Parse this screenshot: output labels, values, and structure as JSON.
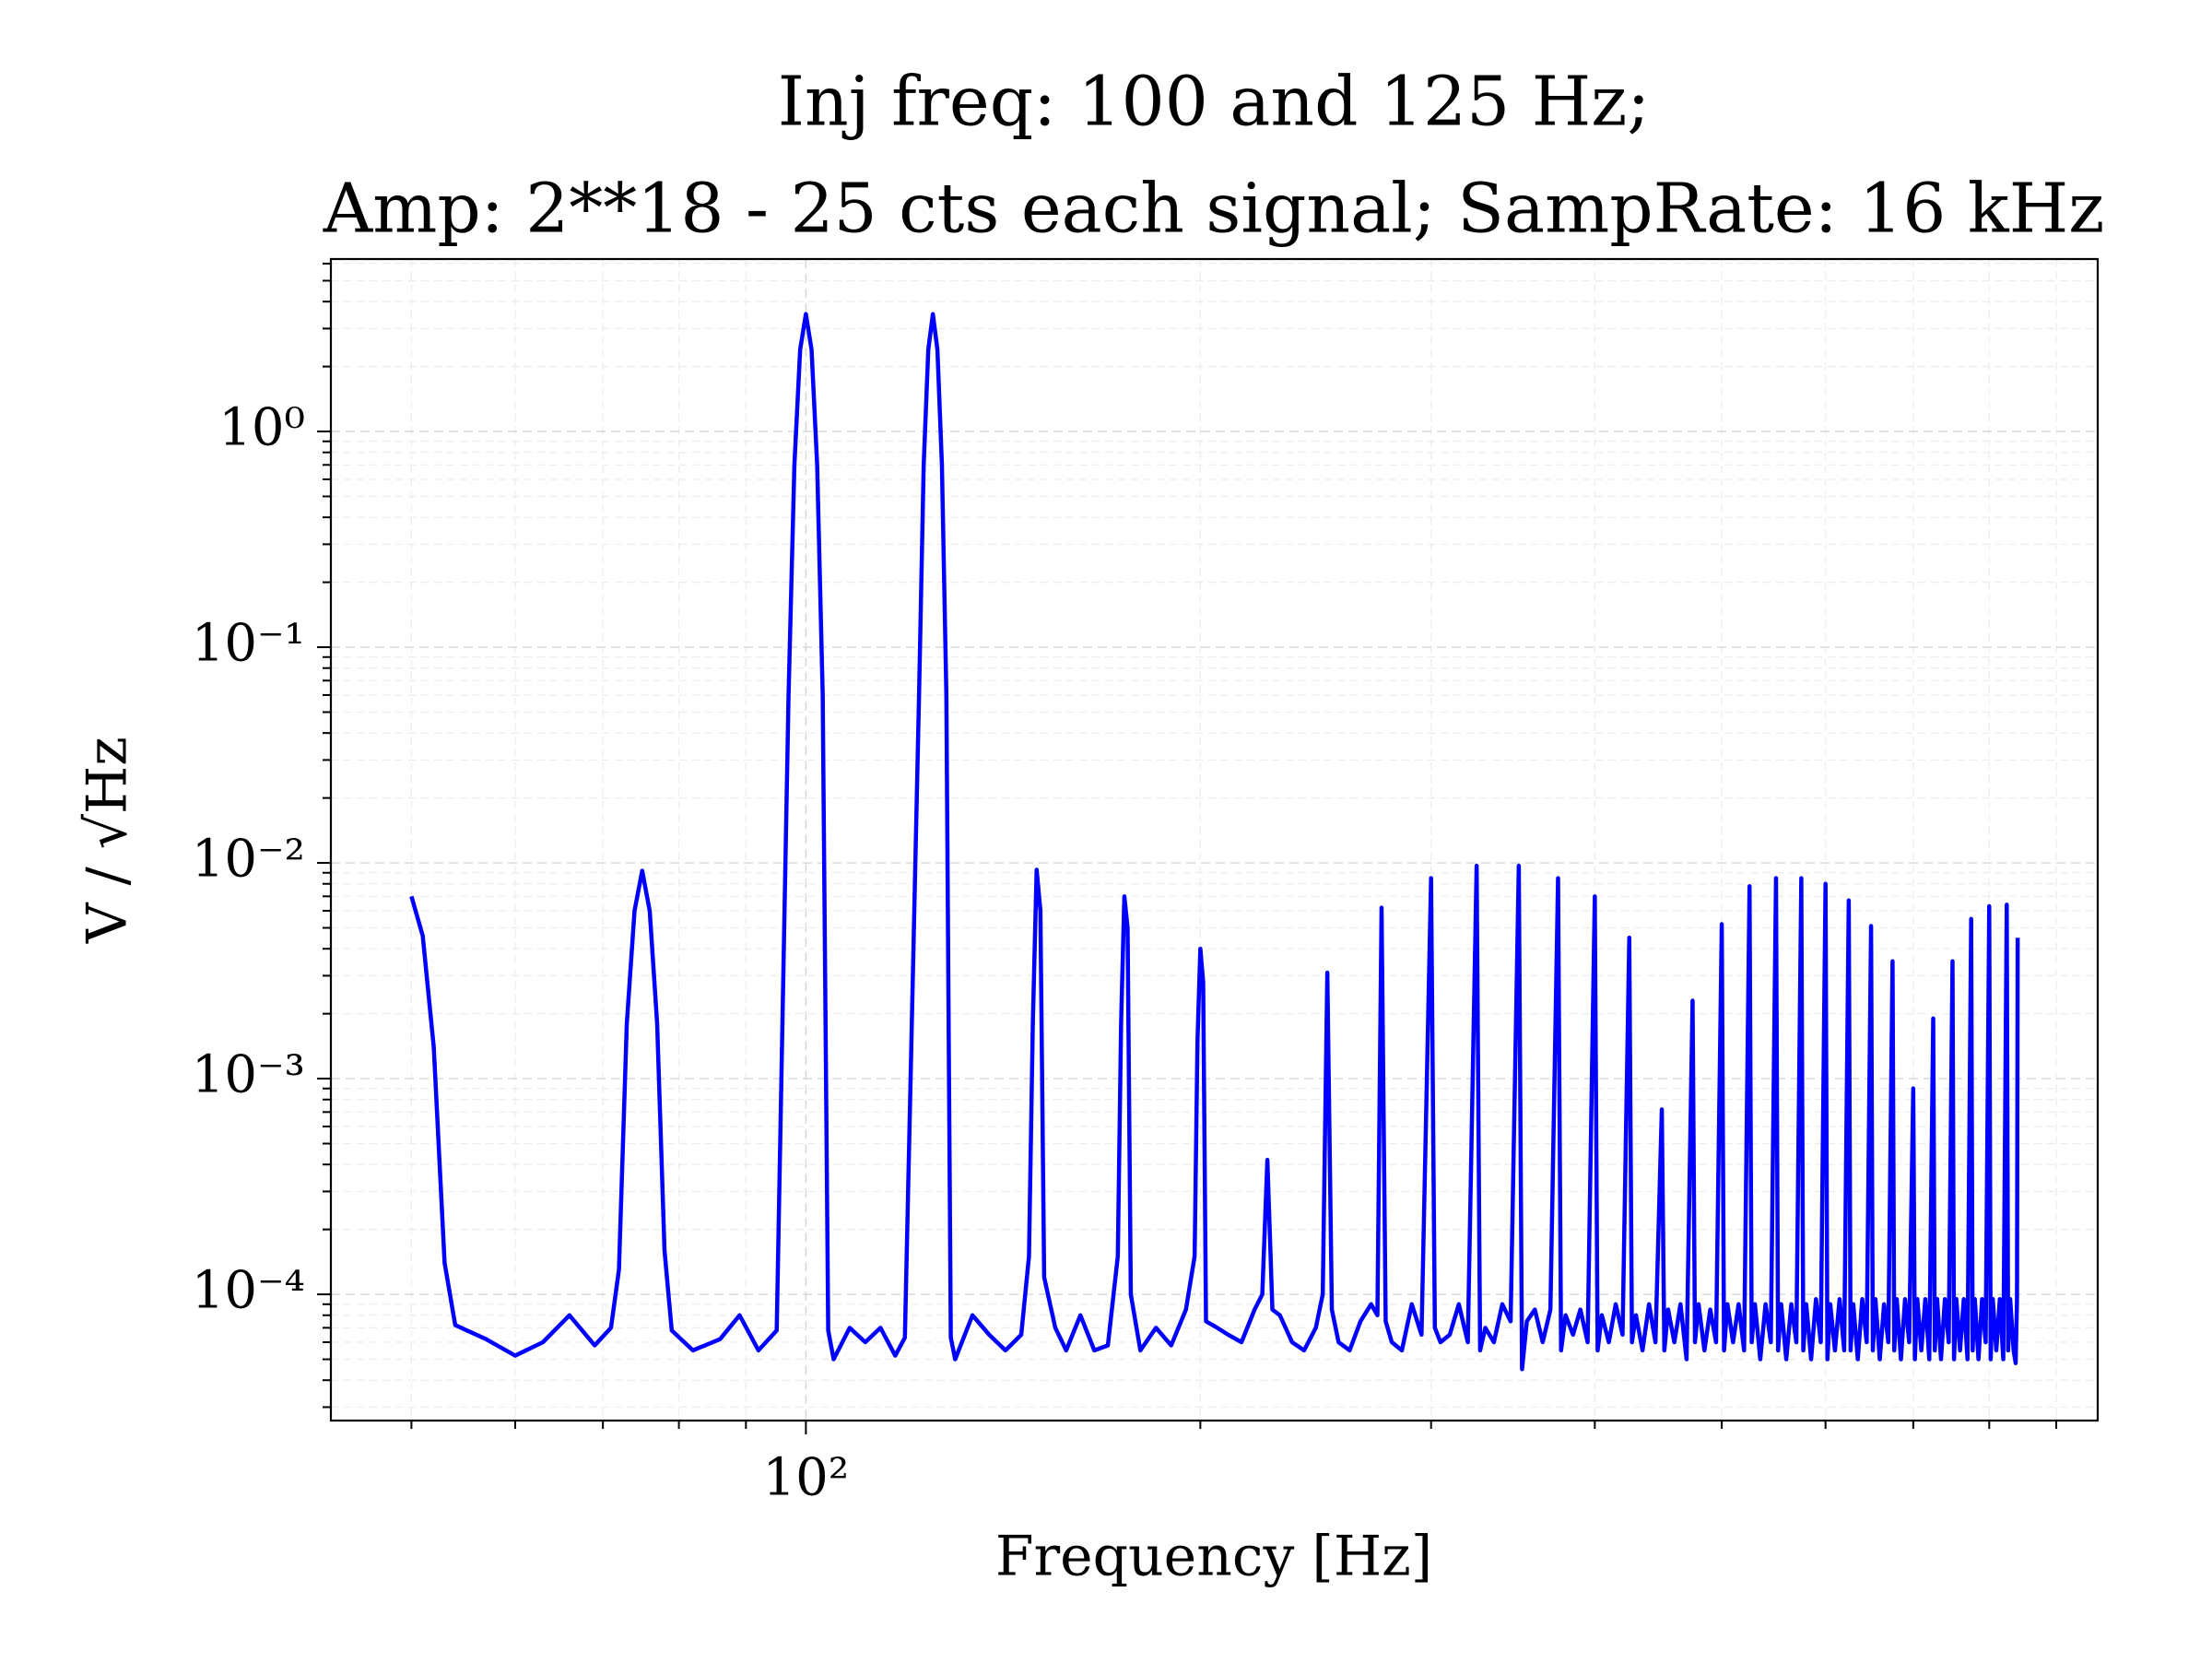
{
  "chart_data": {
    "type": "line",
    "title": [
      "Inj freq: 100 and 125 Hz;",
      "Amp: 2**18 - 25 cts each signal; SampRate: 16 kHz"
    ],
    "xlabel": "Frequency [Hz]",
    "ylabel": "V / √Hz",
    "xscale": "log",
    "yscale": "log",
    "grid": true,
    "color": "#0000ff",
    "xlim": [
      43.4,
      968
    ],
    "ylim": [
      2.6e-05,
      6.3
    ],
    "xticks": [
      {
        "value": 100,
        "label": "10²"
      }
    ],
    "xminor_ticks": [
      50,
      60,
      70,
      80,
      90,
      200,
      300,
      400,
      500,
      600,
      700,
      800,
      900
    ],
    "yticks": [
      {
        "value": 0.0001,
        "label": "10⁻⁴"
      },
      {
        "value": 0.001,
        "label": "10⁻³"
      },
      {
        "value": 0.01,
        "label": "10⁻²"
      },
      {
        "value": 0.1,
        "label": "10⁻¹"
      },
      {
        "value": 1,
        "label": "10⁰"
      }
    ],
    "yminor_ticks": [
      3e-05,
      4e-05,
      5e-05,
      6e-05,
      7e-05,
      8e-05,
      9e-05,
      0.0002,
      0.0003,
      0.0004,
      0.0005,
      0.0006,
      0.0007,
      0.0008,
      0.0009,
      0.002,
      0.003,
      0.004,
      0.005,
      0.006,
      0.007,
      0.008,
      0.009,
      0.02,
      0.03,
      0.04,
      0.05,
      0.06,
      0.07,
      0.08,
      0.09,
      0.2,
      0.3,
      0.4,
      0.5,
      0.6,
      0.7,
      0.8,
      0.9,
      2,
      3,
      4,
      5,
      6
    ],
    "x": [
      50,
      51,
      52,
      53,
      54,
      57,
      60,
      63,
      66,
      69,
      71,
      72,
      73,
      74,
      75,
      76,
      77,
      78,
      79,
      82,
      86,
      89,
      92,
      95,
      97,
      98,
      99,
      100,
      101,
      102,
      103,
      104,
      105,
      108,
      111,
      114,
      117,
      119,
      122,
      123,
      124,
      125,
      126,
      127,
      128,
      129,
      130,
      134,
      138,
      142,
      146,
      148,
      149,
      150,
      151,
      152,
      155,
      158,
      162,
      166,
      170,
      173,
      174,
      175,
      176,
      177,
      180,
      185,
      190,
      195,
      198,
      199,
      200,
      201,
      202,
      206,
      210,
      215,
      220,
      223,
      225,
      227,
      230,
      235,
      240,
      245,
      248,
      250,
      252,
      255,
      260,
      265,
      270,
      273,
      275,
      277,
      280,
      285,
      290,
      295,
      300,
      302,
      305,
      310,
      315,
      320,
      325,
      327,
      330,
      335,
      340,
      345,
      350,
      352,
      355,
      360,
      365,
      370,
      375,
      377,
      380,
      385,
      390,
      395,
      400,
      402,
      405,
      410,
      415,
      420,
      425,
      427,
      430,
      435,
      440,
      445,
      450,
      452,
      455,
      460,
      465,
      470,
      475,
      477,
      480,
      485,
      490,
      495,
      500,
      502,
      505,
      510,
      515,
      520,
      525,
      527,
      530,
      535,
      540,
      545,
      550,
      552,
      555,
      560,
      565,
      570,
      575,
      577,
      580,
      585,
      590,
      595,
      600,
      602,
      605,
      610,
      615,
      620,
      625,
      627,
      630,
      635,
      640,
      645,
      650,
      652,
      655,
      660,
      665,
      670,
      675,
      677,
      680,
      685,
      690,
      695,
      700,
      702,
      705,
      710,
      715,
      720,
      725,
      727,
      730,
      735,
      740,
      745,
      750,
      752,
      755,
      760,
      765,
      770,
      775,
      777,
      780,
      785,
      790,
      795,
      800,
      802,
      805,
      810,
      815,
      820,
      825,
      827,
      830,
      835,
      838,
      840,
      841
    ],
    "values": [
      0.007,
      0.0046,
      0.0014,
      0.00014,
      7.2e-05,
      6.2e-05,
      5.2e-05,
      6e-05,
      8e-05,
      5.8e-05,
      7e-05,
      0.00013,
      0.0018,
      0.006,
      0.0092,
      0.006,
      0.0018,
      0.00016,
      6.8e-05,
      5.5e-05,
      6.2e-05,
      8e-05,
      5.5e-05,
      6.8e-05,
      0.06,
      0.7,
      2.4,
      3.5,
      2.4,
      0.7,
      0.06,
      6.8e-05,
      5e-05,
      7e-05,
      6e-05,
      7e-05,
      5.2e-05,
      6.3e-05,
      0.06,
      0.7,
      2.4,
      3.5,
      2.4,
      0.7,
      0.06,
      6.3e-05,
      5e-05,
      8e-05,
      6.5e-05,
      5.5e-05,
      6.5e-05,
      0.00015,
      0.0018,
      0.0093,
      0.006,
      0.00012,
      7e-05,
      5.5e-05,
      8e-05,
      5.5e-05,
      5.8e-05,
      0.00015,
      0.0018,
      0.007,
      0.005,
      0.0001,
      5.5e-05,
      7e-05,
      5.8e-05,
      8.5e-05,
      0.00015,
      0.0015,
      0.004,
      0.0028,
      7.5e-05,
      7e-05,
      6.5e-05,
      6e-05,
      8.5e-05,
      0.0001,
      0.00042,
      8.5e-05,
      8e-05,
      6e-05,
      5.5e-05,
      7e-05,
      0.0001,
      0.0031,
      8.5e-05,
      6e-05,
      5.5e-05,
      7.5e-05,
      9e-05,
      8e-05,
      0.0062,
      7.5e-05,
      6e-05,
      5.5e-05,
      9e-05,
      6.5e-05,
      0.0085,
      7e-05,
      6e-05,
      6.5e-05,
      9e-05,
      6e-05,
      0.0097,
      5.5e-05,
      7e-05,
      6e-05,
      9e-05,
      7.5e-05,
      0.0097,
      4.5e-05,
      7.5e-05,
      8.5e-05,
      6e-05,
      8.5e-05,
      0.0085,
      5.5e-05,
      8e-05,
      6.5e-05,
      8.5e-05,
      6e-05,
      0.007,
      5.5e-05,
      8e-05,
      6e-05,
      9e-05,
      6.5e-05,
      0.0045,
      6e-05,
      8e-05,
      5.5e-05,
      9e-05,
      6e-05,
      0.00072,
      5.5e-05,
      8.5e-05,
      6e-05,
      9e-05,
      5e-05,
      0.0023,
      6e-05,
      9e-05,
      5.5e-05,
      8.5e-05,
      6e-05,
      0.0052,
      5.5e-05,
      9e-05,
      6e-05,
      9e-05,
      5.5e-05,
      0.0078,
      6e-05,
      9e-05,
      5e-05,
      9e-05,
      6e-05,
      0.0085,
      5.5e-05,
      9e-05,
      5e-05,
      9e-05,
      6e-05,
      0.0085,
      5.5e-05,
      9e-05,
      5e-05,
      9.5e-05,
      6e-05,
      0.008,
      5e-05,
      9e-05,
      5.5e-05,
      9.5e-05,
      5.5e-05,
      0.0067,
      5.5e-05,
      9e-05,
      5e-05,
      9.5e-05,
      6e-05,
      0.0051,
      5.5e-05,
      9.5e-05,
      5e-05,
      9e-05,
      6e-05,
      0.0035,
      5.5e-05,
      9.5e-05,
      5e-05,
      9.5e-05,
      6e-05,
      0.0009,
      5e-05,
      9.5e-05,
      5.5e-05,
      9.5e-05,
      5e-05,
      0.0019,
      5.5e-05,
      9.5e-05,
      5e-05,
      9.5e-05,
      6e-05,
      0.0035,
      5e-05,
      9.5e-05,
      5.5e-05,
      9.5e-05,
      5e-05,
      0.0055,
      5.5e-05,
      9.5e-05,
      5e-05,
      9.5e-05,
      6e-05,
      0.0063,
      5e-05,
      9.5e-05,
      5.5e-05,
      9.5e-05,
      5e-05,
      0.0064,
      5.5e-05,
      9.5e-05,
      5.5e-05,
      4.8e-05,
      9.5e-05,
      0.0045
    ]
  }
}
